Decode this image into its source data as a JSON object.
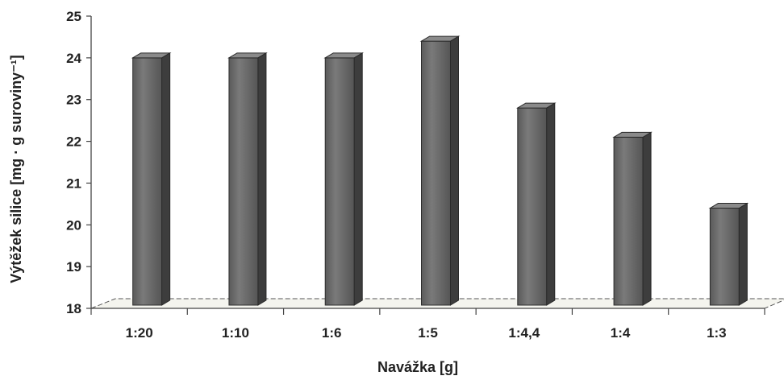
{
  "chart_data": {
    "type": "bar",
    "title": "",
    "xlabel": "Navážka [g]",
    "ylabel": "Výtěžek silice [mg · g suroviny⁻¹]",
    "categories": [
      "1:20",
      "1:10",
      "1:6",
      "1:5",
      "1:4,4",
      "1:4",
      "1:3"
    ],
    "series": [
      {
        "values": [
          24.0,
          24.0,
          24.0,
          24.4,
          22.8,
          22.1,
          20.4
        ]
      }
    ],
    "ylim": [
      18,
      25
    ],
    "yticks": [
      18,
      19,
      20,
      21,
      22,
      23,
      24,
      25
    ],
    "grid": false,
    "legend": "none",
    "bar_color": "#6b6b6b",
    "style": "3d-column"
  }
}
